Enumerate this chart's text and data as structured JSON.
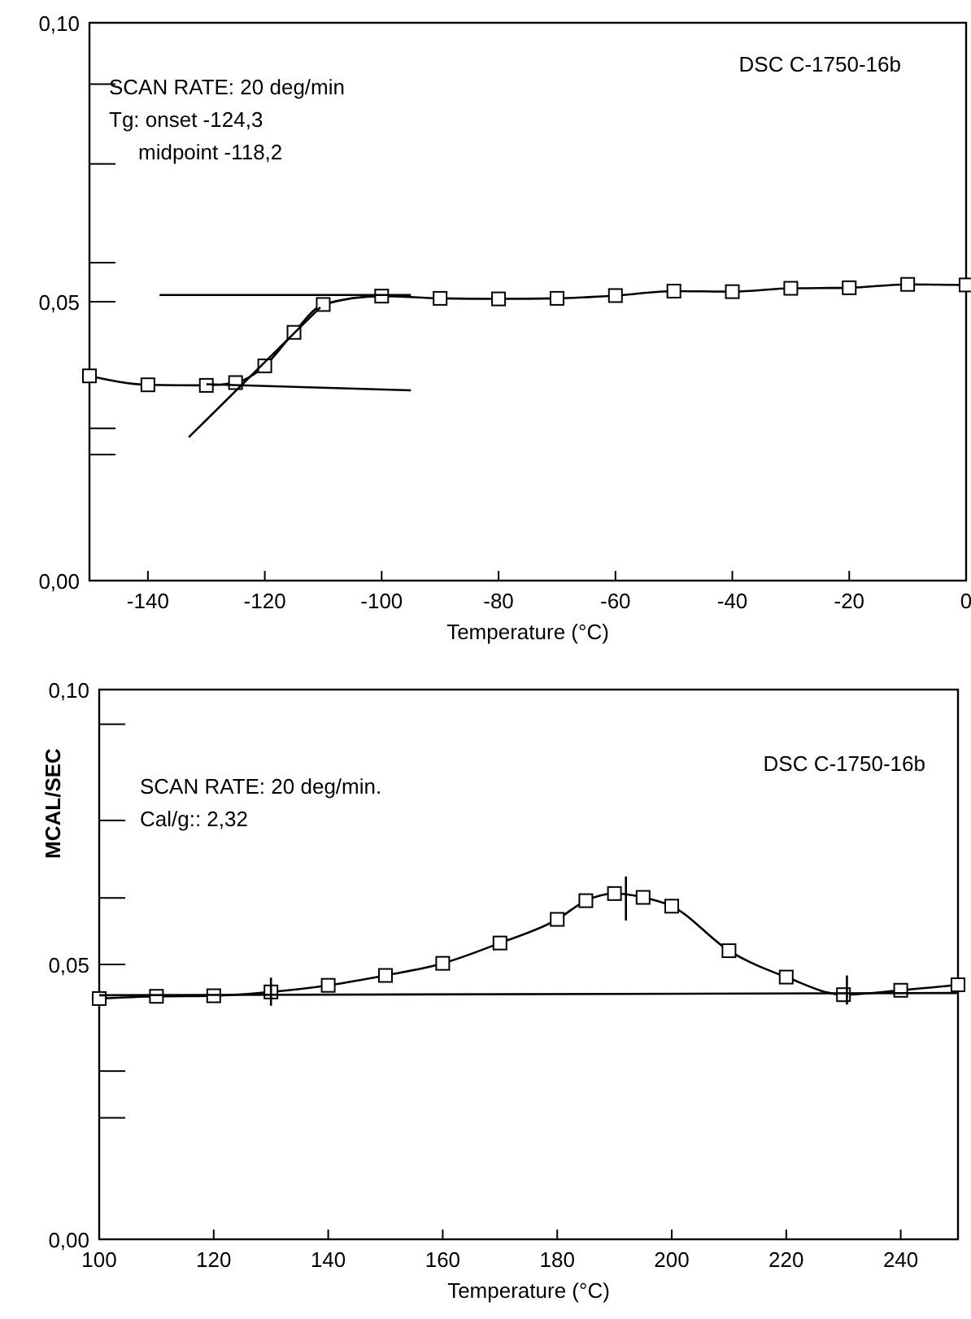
{
  "chart_data": [
    {
      "type": "line",
      "xlabel": "Temperature (°C)",
      "marker": "square",
      "x": [
        -150,
        -140,
        -130,
        -125,
        -120,
        -115,
        -110,
        -100,
        -90,
        -80,
        -70,
        -60,
        -50,
        -40,
        -30,
        -20,
        -10,
        0
      ],
      "series": [
        {
          "color": "#000000",
          "values": [
            0.0367,
            0.0351,
            0.035,
            0.0355,
            0.0385,
            0.0445,
            0.0495,
            0.051,
            0.0506,
            0.0505,
            0.0506,
            0.0511,
            0.0519,
            0.0518,
            0.0524,
            0.0525,
            0.0531,
            0.053
          ]
        },
        {
          "type": "line",
          "marker": "none",
          "color": "#000000",
          "x": [
            -138,
            -95
          ],
          "values": [
            0.0512,
            0.0512
          ]
        },
        {
          "type": "line",
          "marker": "none",
          "color": "#000000",
          "x": [
            -130,
            -95
          ],
          "values": [
            0.0352,
            0.0341
          ]
        },
        {
          "type": "line",
          "marker": "none",
          "color": "#000000",
          "x": [
            -133,
            -110.5
          ],
          "values": [
            0.0257,
            0.049
          ]
        }
      ],
      "xlim": [
        -150,
        0
      ],
      "xticks": [
        -140,
        -120,
        -100,
        -80,
        -60,
        -40,
        -20,
        0
      ],
      "ylim": [
        0,
        0.1
      ],
      "yticks": [
        {
          "value": 0,
          "label": "0,00"
        },
        {
          "value": 0.0226,
          "label": null
        },
        {
          "value": 0.0273,
          "label": null
        },
        {
          "value": 0.05,
          "label": "0,05"
        },
        {
          "value": 0.057,
          "label": null
        },
        {
          "value": 0.0747,
          "label": null
        },
        {
          "value": 0.089,
          "label": null
        },
        {
          "value": 0.1,
          "label": "0,10"
        }
      ],
      "annotations": [
        "SCAN RATE: 20 deg/min",
        "Tg: onset -124,3",
        "midpoint -118,2",
        "DSC C-1750-16b"
      ]
    },
    {
      "type": "line",
      "xlabel": "Temperature (°C)",
      "ylabel": "MCAL/SEC",
      "marker": "square",
      "x": [
        100,
        110,
        120,
        130,
        140,
        150,
        160,
        170,
        180,
        185,
        190,
        195,
        200,
        210,
        220,
        230,
        240,
        250
      ],
      "series": [
        {
          "color": "#000000",
          "values": [
            0.0438,
            0.0442,
            0.0443,
            0.045,
            0.0462,
            0.048,
            0.0502,
            0.0539,
            0.0582,
            0.0616,
            0.0629,
            0.0622,
            0.0606,
            0.0525,
            0.0477,
            0.0445,
            0.0453,
            0.0463
          ]
        },
        {
          "type": "line",
          "marker": "none",
          "color": "#000000",
          "x": [
            100,
            250
          ],
          "values": [
            0.0444,
            0.0448
          ]
        },
        {
          "type": "line",
          "marker": "none",
          "color": "#000000",
          "x": [
            130,
            130
          ],
          "values": [
            0.0425,
            0.0476
          ]
        },
        {
          "type": "line",
          "marker": "none",
          "color": "#000000",
          "x": [
            192,
            192
          ],
          "values": [
            0.058,
            0.066
          ]
        },
        {
          "type": "line",
          "marker": "none",
          "color": "#000000",
          "x": [
            230.6,
            230.6
          ],
          "values": [
            0.0427,
            0.048
          ]
        }
      ],
      "xlim": [
        100,
        250
      ],
      "xticks": [
        100,
        120,
        140,
        160,
        180,
        200,
        220,
        240
      ],
      "ylim": [
        0,
        0.1
      ],
      "yticks": [
        {
          "value": 0,
          "label": "0,00"
        },
        {
          "value": 0.0221,
          "label": null
        },
        {
          "value": 0.0306,
          "label": null
        },
        {
          "value": 0.05,
          "label": "0,05"
        },
        {
          "value": 0.0621,
          "label": null
        },
        {
          "value": 0.0762,
          "label": null
        },
        {
          "value": 0.0937,
          "label": null
        },
        {
          "value": 0.1,
          "label": "0,10"
        }
      ],
      "annotations": [
        "SCAN RATE: 20 deg/min.",
        "Cal/g:: 2,32",
        "DSC C-1750-16b"
      ]
    }
  ]
}
